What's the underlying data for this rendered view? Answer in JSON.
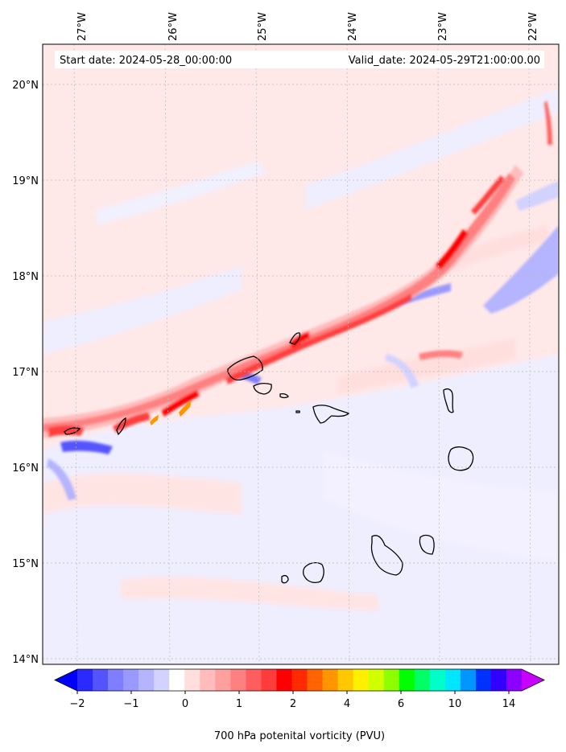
{
  "header": {
    "start_date": "Start date: 2024-05-28_00:00:00",
    "valid_date": "Valid_date: 2024-05-29T21:00:00.00"
  },
  "map": {
    "lon_labels": [
      "27°W",
      "26°W",
      "25°W",
      "24°W",
      "23°W",
      "22°W"
    ],
    "lat_labels": [
      "20°N",
      "19°N",
      "18°N",
      "17°N",
      "16°N",
      "15°N",
      "14°N"
    ],
    "colors": {
      "background": "#ffe8e8",
      "negative_light": "#eeeeff",
      "negative_mid": "#b4b4ff",
      "negative_strong": "#3c3cff",
      "positive_light": "#ffcccc",
      "positive_mid": "#ff7070",
      "positive_strong": "#ff0000",
      "orange": "#ff8c00",
      "coastline": "#000000",
      "grid": "#bbbbbb"
    }
  },
  "colorbar": {
    "title": "700 hPa potenital vorticity (PVU)",
    "tick_labels": [
      "−2",
      "−1",
      "0",
      "1",
      "2",
      "4",
      "6",
      "10",
      "14"
    ],
    "colors": [
      "#0000ff",
      "#2a2aff",
      "#5454ff",
      "#7e7eff",
      "#9999ff",
      "#b4b4ff",
      "#d2d2ff",
      "#ffffff",
      "#ffdede",
      "#ffbcbc",
      "#ffa0a0",
      "#ff8080",
      "#ff5e5e",
      "#ff3c3c",
      "#ff0000",
      "#ff2a00",
      "#ff6400",
      "#ff9600",
      "#ffc800",
      "#fff000",
      "#d2ff00",
      "#8cff00",
      "#00ff00",
      "#00ff64",
      "#00ffc8",
      "#00e6ff",
      "#0096ff",
      "#0032ff",
      "#3200ff",
      "#8c00ff",
      "#c800ff"
    ]
  }
}
